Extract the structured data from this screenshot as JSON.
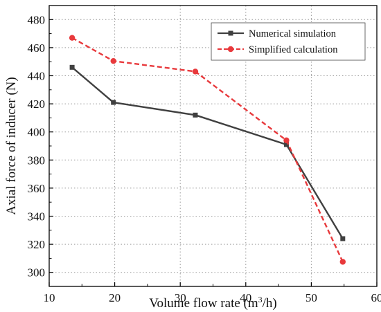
{
  "chart_data": {
    "type": "line",
    "xlabel_prefix": "Volume flow rate (m",
    "xlabel_sup": "3",
    "xlabel_suffix": "/h)",
    "ylabel": "Axial force of inducer  (N)",
    "xlim": [
      10,
      60
    ],
    "ylim": [
      290,
      490
    ],
    "xticks": [
      10,
      20,
      30,
      40,
      50,
      60
    ],
    "yticks": [
      300,
      320,
      340,
      360,
      380,
      400,
      420,
      440,
      460,
      480
    ],
    "grid": true,
    "grid_style": "dotted",
    "legend_position": "top-right",
    "series": [
      {
        "name": "Numerical simulation",
        "color": "#404040",
        "line_style": "solid",
        "marker": "square",
        "x": [
          13.5,
          19.8,
          32.3,
          46.2,
          54.8
        ],
        "y": [
          446,
          421,
          412,
          391,
          324
        ]
      },
      {
        "name": "Simplified calculation",
        "color": "#e8393c",
        "line_style": "dashed",
        "marker": "circle",
        "x": [
          13.5,
          19.8,
          32.3,
          46.2,
          54.8
        ],
        "y": [
          467,
          450.5,
          443,
          394,
          307.5
        ]
      }
    ]
  }
}
